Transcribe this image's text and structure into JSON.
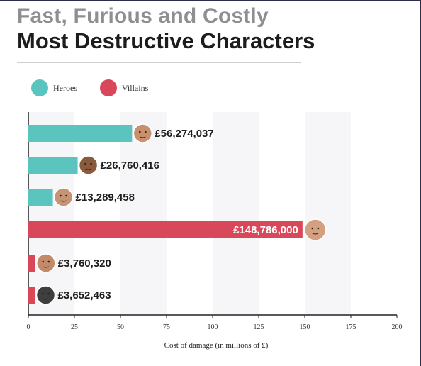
{
  "header": {
    "title": "Fast, Furious and Costly",
    "subtitle": "Most Destructive Characters"
  },
  "legend": [
    {
      "label": "Heroes",
      "color": "#5bc4bf"
    },
    {
      "label": "Villains",
      "color": "#d9475a"
    }
  ],
  "chart_data": {
    "type": "bar",
    "orientation": "horizontal",
    "categories": [
      "",
      "",
      "",
      "",
      "",
      ""
    ],
    "values": [
      56.274037,
      26.760416,
      13.289458,
      148.786,
      3.76032,
      3.652463
    ],
    "value_labels": [
      "£56,274,037",
      "£26,760,416",
      "£13,289,458",
      "£148,786,000",
      "£3,760,320",
      "£3,652,463"
    ],
    "groups": [
      "Heroes",
      "Heroes",
      "Heroes",
      "Villains",
      "Villains",
      "Villains"
    ],
    "xlabel": "Cost of damage (in millions of £)",
    "ylabel": "",
    "xlim": [
      0,
      200
    ],
    "xticks": [
      "0",
      "25",
      "50",
      "75",
      "100",
      "125",
      "150",
      "175",
      "200"
    ],
    "legend_position": "top-left",
    "grid": "alternating vertical bands"
  }
}
